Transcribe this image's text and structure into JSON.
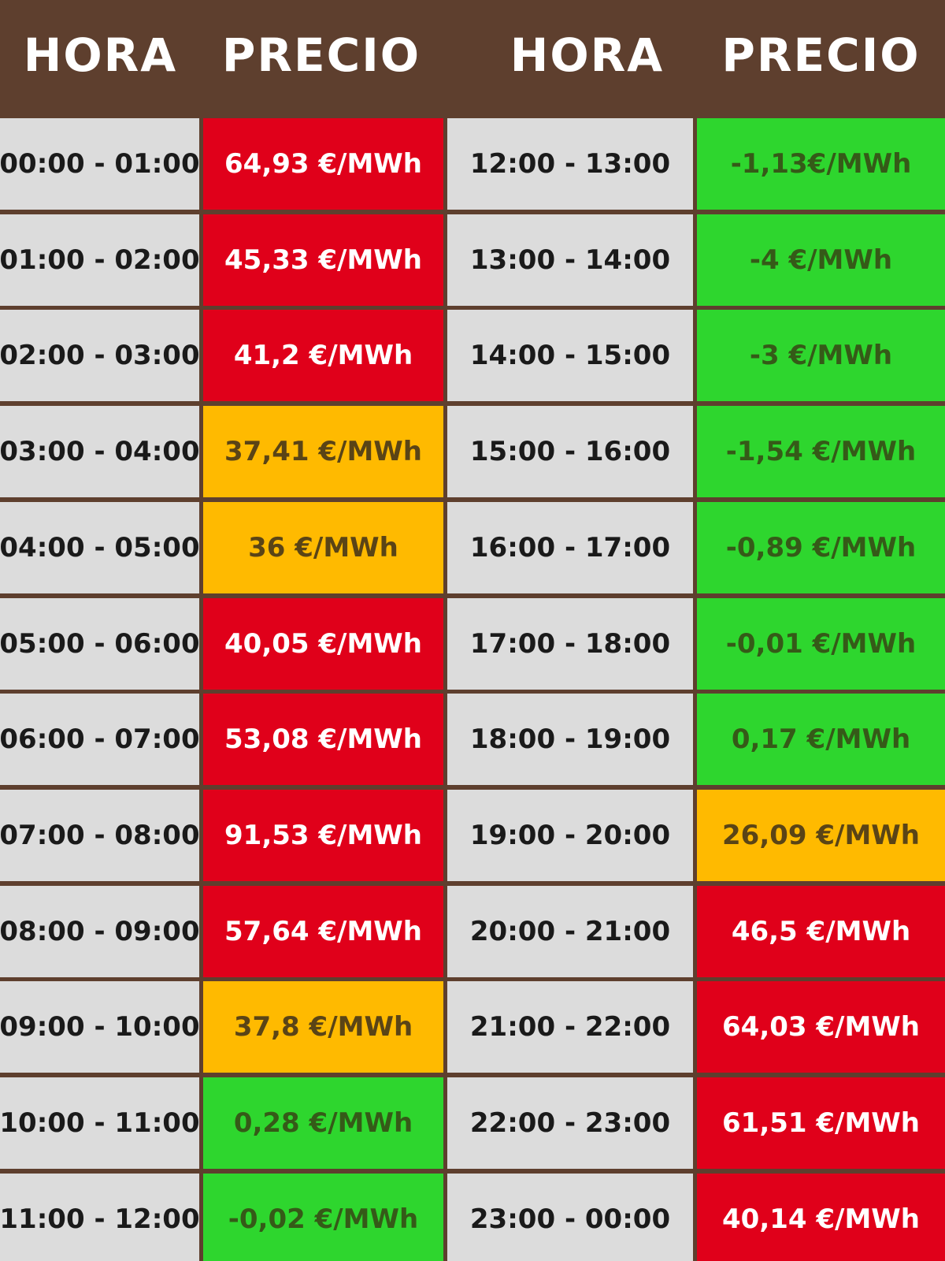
{
  "header": {
    "col1": "HORA",
    "col2": "PRECIO",
    "col3": "HORA",
    "col4": "PRECIO"
  },
  "colors": {
    "header_bg": "#5e3f2e",
    "time_bg": "#dcdcdc",
    "high_price": "#e0001a",
    "mid_price": "#ffba00",
    "low_price": "#2ed62e"
  },
  "rows": [
    {
      "left_time": "00:00 - 01:00",
      "left_price": "64,93 €/MWh",
      "left_level": "red",
      "right_time": "12:00 - 13:00",
      "right_price": "-1,13€/MWh",
      "right_level": "green"
    },
    {
      "left_time": "01:00 - 02:00",
      "left_price": "45,33 €/MWh",
      "left_level": "red",
      "right_time": "13:00 - 14:00",
      "right_price": "-4 €/MWh",
      "right_level": "green"
    },
    {
      "left_time": "02:00 - 03:00",
      "left_price": "41,2 €/MWh",
      "left_level": "red",
      "right_time": "14:00 - 15:00",
      "right_price": "-3 €/MWh",
      "right_level": "green"
    },
    {
      "left_time": "03:00 - 04:00",
      "left_price": "37,41 €/MWh",
      "left_level": "orange",
      "right_time": "15:00 - 16:00",
      "right_price": "-1,54 €/MWh",
      "right_level": "green"
    },
    {
      "left_time": "04:00 - 05:00",
      "left_price": "36 €/MWh",
      "left_level": "orange",
      "right_time": "16:00 - 17:00",
      "right_price": "-0,89 €/MWh",
      "right_level": "green"
    },
    {
      "left_time": "05:00 - 06:00",
      "left_price": "40,05 €/MWh",
      "left_level": "red",
      "right_time": "17:00 - 18:00",
      "right_price": "-0,01 €/MWh",
      "right_level": "green"
    },
    {
      "left_time": "06:00 - 07:00",
      "left_price": "53,08 €/MWh",
      "left_level": "red",
      "right_time": "18:00 - 19:00",
      "right_price": "0,17 €/MWh",
      "right_level": "green"
    },
    {
      "left_time": "07:00 - 08:00",
      "left_price": "91,53 €/MWh",
      "left_level": "red",
      "right_time": "19:00 - 20:00",
      "right_price": "26,09 €/MWh",
      "right_level": "orange"
    },
    {
      "left_time": "08:00 - 09:00",
      "left_price": "57,64 €/MWh",
      "left_level": "red",
      "right_time": "20:00 - 21:00",
      "right_price": "46,5 €/MWh",
      "right_level": "red"
    },
    {
      "left_time": "09:00 - 10:00",
      "left_price": "37,8 €/MWh",
      "left_level": "orange",
      "right_time": "21:00 - 22:00",
      "right_price": "64,03 €/MWh",
      "right_level": "red"
    },
    {
      "left_time": "10:00 - 11:00",
      "left_price": "0,28 €/MWh",
      "left_level": "green",
      "right_time": "22:00 - 23:00",
      "right_price": "61,51 €/MWh",
      "right_level": "red"
    },
    {
      "left_time": "11:00 - 12:00",
      "left_price": "-0,02 €/MWh",
      "left_level": "green",
      "right_time": "23:00 - 00:00",
      "right_price": "40,14 €/MWh",
      "right_level": "red"
    }
  ]
}
